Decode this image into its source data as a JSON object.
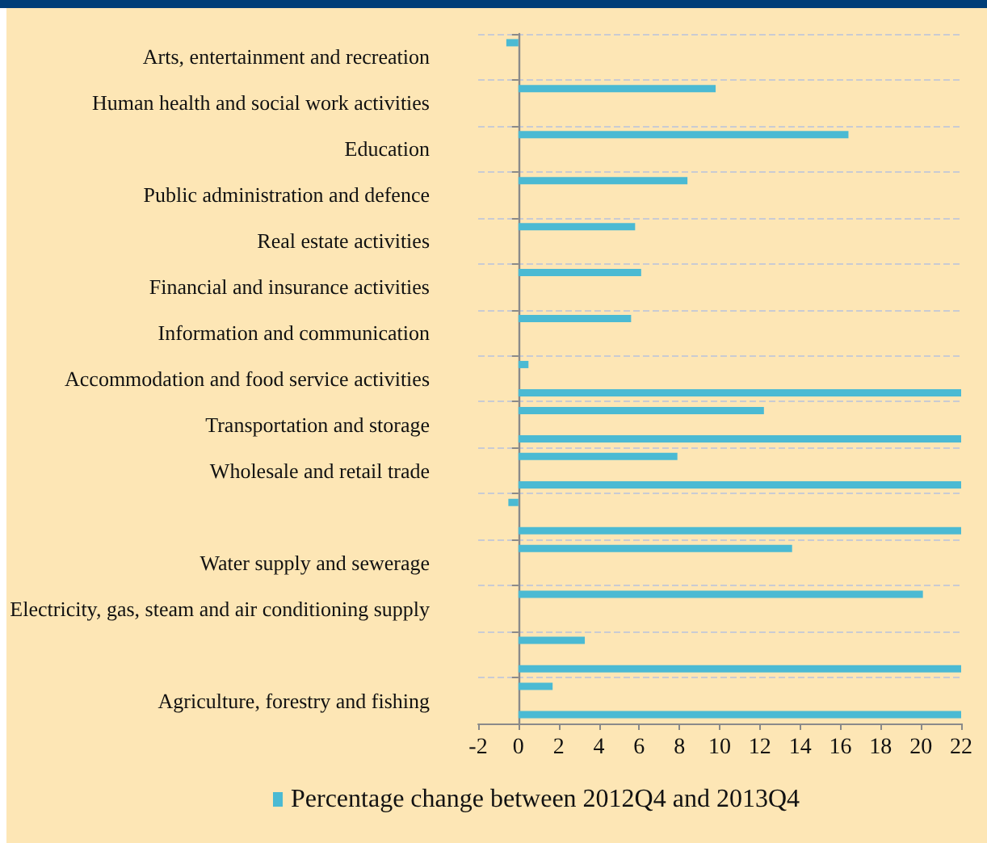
{
  "chart_data": {
    "type": "bar",
    "orientation": "horizontal",
    "categories": [
      "Arts, entertainment and recreation",
      "Human health and social work activities",
      "Education",
      "Public administration and defence",
      "Real estate activities",
      "Financial and insurance activities",
      "Information and communication",
      "Accommodation and food service activities",
      "Transportation and storage",
      "Wholesale and retail trade",
      null,
      "Water supply and sewerage",
      "Electricity, gas, steam and air conditioning supply",
      null,
      "Agriculture, forestry and fishing"
    ],
    "series": [
      {
        "name": "Percentage change between 2012Q4 and 2013Q4",
        "color": "#4bbad3",
        "values": [
          -0.6,
          9.8,
          16.4,
          8.4,
          5.8,
          6.1,
          5.6,
          0.5,
          12.2,
          7.9,
          -0.5,
          13.6,
          20.1,
          3.3,
          1.7
        ]
      },
      {
        "color": "#4bbad3",
        "values": [
          null,
          null,
          null,
          null,
          null,
          null,
          null,
          22,
          22,
          22,
          22,
          null,
          null,
          22,
          22
        ]
      }
    ],
    "xlim": [
      -2,
      22
    ],
    "xticks": [
      -2,
      0,
      2,
      4,
      6,
      8,
      10,
      12,
      14,
      16,
      18,
      20,
      22
    ],
    "grid": "y",
    "legend": "bottom"
  }
}
